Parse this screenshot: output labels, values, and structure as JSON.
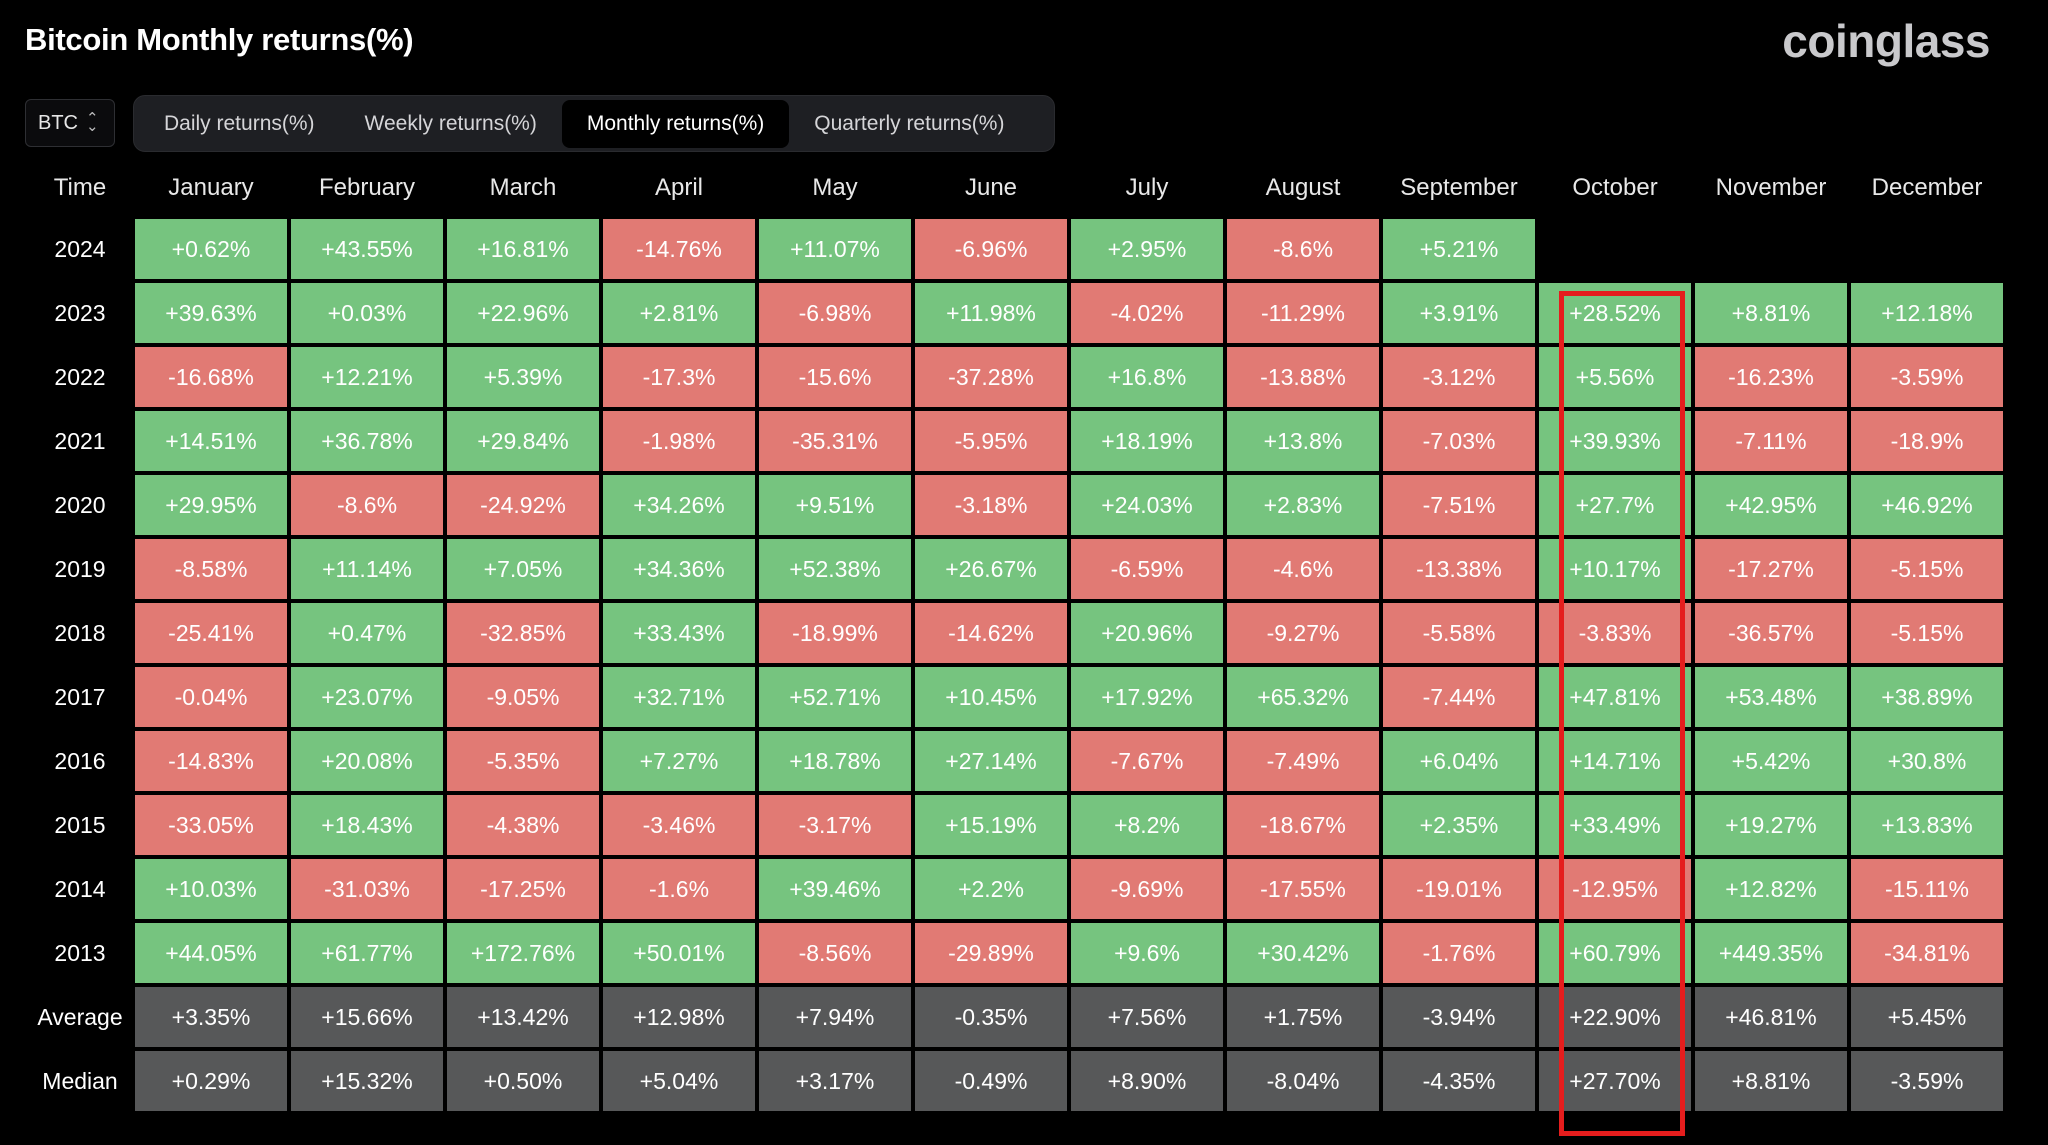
{
  "header": {
    "title": "Bitcoin Monthly returns(%)",
    "brand": "coinglass"
  },
  "asset_select": {
    "value": "BTC"
  },
  "tabs": [
    {
      "label": "Daily returns(%)",
      "active": false
    },
    {
      "label": "Weekly returns(%)",
      "active": false
    },
    {
      "label": "Monthly returns(%)",
      "active": true
    },
    {
      "label": "Quarterly returns(%)",
      "active": false
    }
  ],
  "colors": {
    "positive": "#76c47f",
    "negative": "#e17a74",
    "stat": "#575859",
    "highlight": "#e51d1d"
  },
  "table": {
    "time_header": "Time",
    "columns": [
      "January",
      "February",
      "March",
      "April",
      "May",
      "June",
      "July",
      "August",
      "September",
      "October",
      "November",
      "December"
    ],
    "rows": [
      {
        "label": "2024",
        "values": [
          "+0.62%",
          "+43.55%",
          "+16.81%",
          "-14.76%",
          "+11.07%",
          "-6.96%",
          "+2.95%",
          "-8.6%",
          "+5.21%",
          "",
          "",
          ""
        ]
      },
      {
        "label": "2023",
        "values": [
          "+39.63%",
          "+0.03%",
          "+22.96%",
          "+2.81%",
          "-6.98%",
          "+11.98%",
          "-4.02%",
          "-11.29%",
          "+3.91%",
          "+28.52%",
          "+8.81%",
          "+12.18%"
        ]
      },
      {
        "label": "2022",
        "values": [
          "-16.68%",
          "+12.21%",
          "+5.39%",
          "-17.3%",
          "-15.6%",
          "-37.28%",
          "+16.8%",
          "-13.88%",
          "-3.12%",
          "+5.56%",
          "-16.23%",
          "-3.59%"
        ]
      },
      {
        "label": "2021",
        "values": [
          "+14.51%",
          "+36.78%",
          "+29.84%",
          "-1.98%",
          "-35.31%",
          "-5.95%",
          "+18.19%",
          "+13.8%",
          "-7.03%",
          "+39.93%",
          "-7.11%",
          "-18.9%"
        ]
      },
      {
        "label": "2020",
        "values": [
          "+29.95%",
          "-8.6%",
          "-24.92%",
          "+34.26%",
          "+9.51%",
          "-3.18%",
          "+24.03%",
          "+2.83%",
          "-7.51%",
          "+27.7%",
          "+42.95%",
          "+46.92%"
        ]
      },
      {
        "label": "2019",
        "values": [
          "-8.58%",
          "+11.14%",
          "+7.05%",
          "+34.36%",
          "+52.38%",
          "+26.67%",
          "-6.59%",
          "-4.6%",
          "-13.38%",
          "+10.17%",
          "-17.27%",
          "-5.15%"
        ]
      },
      {
        "label": "2018",
        "values": [
          "-25.41%",
          "+0.47%",
          "-32.85%",
          "+33.43%",
          "-18.99%",
          "-14.62%",
          "+20.96%",
          "-9.27%",
          "-5.58%",
          "-3.83%",
          "-36.57%",
          "-5.15%"
        ]
      },
      {
        "label": "2017",
        "values": [
          "-0.04%",
          "+23.07%",
          "-9.05%",
          "+32.71%",
          "+52.71%",
          "+10.45%",
          "+17.92%",
          "+65.32%",
          "-7.44%",
          "+47.81%",
          "+53.48%",
          "+38.89%"
        ]
      },
      {
        "label": "2016",
        "values": [
          "-14.83%",
          "+20.08%",
          "-5.35%",
          "+7.27%",
          "+18.78%",
          "+27.14%",
          "-7.67%",
          "-7.49%",
          "+6.04%",
          "+14.71%",
          "+5.42%",
          "+30.8%"
        ]
      },
      {
        "label": "2015",
        "values": [
          "-33.05%",
          "+18.43%",
          "-4.38%",
          "-3.46%",
          "-3.17%",
          "+15.19%",
          "+8.2%",
          "-18.67%",
          "+2.35%",
          "+33.49%",
          "+19.27%",
          "+13.83%"
        ]
      },
      {
        "label": "2014",
        "values": [
          "+10.03%",
          "-31.03%",
          "-17.25%",
          "-1.6%",
          "+39.46%",
          "+2.2%",
          "-9.69%",
          "-17.55%",
          "-19.01%",
          "-12.95%",
          "+12.82%",
          "-15.11%"
        ]
      },
      {
        "label": "2013",
        "values": [
          "+44.05%",
          "+61.77%",
          "+172.76%",
          "+50.01%",
          "-8.56%",
          "-29.89%",
          "+9.6%",
          "+30.42%",
          "-1.76%",
          "+60.79%",
          "+449.35%",
          "-34.81%"
        ]
      }
    ],
    "stats": [
      {
        "label": "Average",
        "values": [
          "+3.35%",
          "+15.66%",
          "+13.42%",
          "+12.98%",
          "+7.94%",
          "-0.35%",
          "+7.56%",
          "+1.75%",
          "-3.94%",
          "+22.90%",
          "+46.81%",
          "+5.45%"
        ]
      },
      {
        "label": "Median",
        "values": [
          "+0.29%",
          "+15.32%",
          "+0.50%",
          "+5.04%",
          "+3.17%",
          "-0.49%",
          "+8.90%",
          "-8.04%",
          "-4.35%",
          "+27.70%",
          "+8.81%",
          "-3.59%"
        ]
      }
    ],
    "highlighted_column": "October"
  }
}
